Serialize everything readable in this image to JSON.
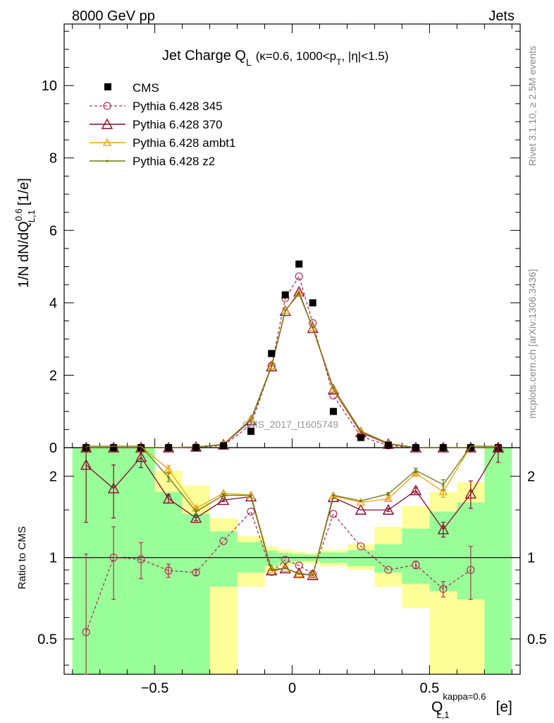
{
  "header": {
    "left": "8000 GeV pp",
    "right": "Jets"
  },
  "side_labels": {
    "rivet": "Rivet 3.1.10, ≥ 2.5M events",
    "mcplots": "mcplots.cern.ch [arXiv:1306.3436]"
  },
  "watermark": "CMS_2017_I1605749",
  "title": {
    "main": "Jet Charge Q",
    "main_sub": "L",
    "detail": "(κ=0.6, 1000<p",
    "detail_sub": "T",
    "detail_tail": ", |η|<1.5)"
  },
  "axes": {
    "ylabel_main": "1/N dN/dQ",
    "ylabel_main_sup": "0.6",
    "ylabel_main_sub": "L,1",
    "ylabel_main_unit": "[1/e]",
    "ylabel_ratio": "Ratio to CMS",
    "xlabel": "Q",
    "xlabel_sup": "kappa=0.6",
    "xlabel_sub": "L,1",
    "xlabel_unit": "[e]",
    "x_ticks": [
      "−0.5",
      "0",
      "0.5"
    ],
    "y_ticks_main": [
      "0",
      "2",
      "4",
      "6",
      "8",
      "10"
    ],
    "y_ticks_ratio": [
      "0.5",
      "1",
      "2"
    ]
  },
  "colors": {
    "cms": "#000000",
    "p345": "#b03050",
    "p370": "#8b0a2a",
    "ambt1": "#f0a010",
    "z2": "#6b7a10",
    "band_green": "#99ff99",
    "band_yellow": "#ffff99"
  },
  "chart_data": {
    "type": "line",
    "x_range": [
      -0.83,
      0.83
    ],
    "main": {
      "ylim": [
        0,
        11.7
      ],
      "yscale": "linear"
    },
    "ratio": {
      "ylim": [
        0.37,
        2.55
      ],
      "yscale": "log",
      "reference": 1
    },
    "x": [
      -0.75,
      -0.65,
      -0.55,
      -0.45,
      -0.35,
      -0.25,
      -0.15,
      -0.075,
      -0.025,
      0.025,
      0.075,
      0.15,
      0.25,
      0.35,
      0.45,
      0.55,
      0.65,
      0.75
    ],
    "series": [
      {
        "name": "CMS",
        "style": "marker",
        "values": [
          0.0,
          0.0,
          0.0,
          0.0,
          0.0,
          0.05,
          0.45,
          2.6,
          4.22,
          5.07,
          4.0,
          1.0,
          0.28,
          0.07,
          0.0,
          0.0,
          0.0,
          0.0
        ]
      },
      {
        "name": "Pythia 6.428 345",
        "style": "dashed-circle",
        "values": [
          0.0,
          0.0,
          0.0,
          0.0,
          0.01,
          0.06,
          0.63,
          2.26,
          4.13,
          4.73,
          3.44,
          1.44,
          0.31,
          0.06,
          0.0,
          0.0,
          0.0,
          0.0
        ],
        "ratio": [
          0.53,
          1.0,
          0.985,
          0.895,
          0.88,
          1.15,
          1.48,
          0.885,
          0.98,
          0.935,
          0.87,
          1.45,
          1.1,
          0.9,
          0.94,
          0.765,
          0.9,
          null
        ],
        "ratio_err": [
          0.5,
          0.3,
          0.15,
          0.05,
          0.02,
          0.01,
          0.01,
          0.005,
          0.005,
          0.005,
          0.005,
          0.01,
          0.01,
          0.01,
          0.03,
          0.05,
          0.2,
          null
        ]
      },
      {
        "name": "Pythia 6.428 370",
        "style": "solid-triangle",
        "values": [
          0.0,
          0.0,
          0.0,
          0.0,
          0.02,
          0.08,
          0.75,
          2.24,
          3.77,
          4.3,
          3.3,
          1.6,
          0.42,
          0.1,
          0.0,
          0.0,
          0.0,
          0.0
        ],
        "ratio": [
          2.2,
          1.8,
          2.35,
          1.65,
          1.4,
          1.63,
          1.68,
          0.895,
          0.91,
          0.875,
          0.86,
          1.67,
          1.5,
          1.5,
          1.77,
          1.27,
          1.72,
          2.55
        ],
        "ratio_err": [
          0.85,
          0.4,
          0.2,
          0.06,
          0.03,
          0.02,
          0.01,
          0.005,
          0.005,
          0.005,
          0.005,
          0.01,
          0.01,
          0.02,
          0.04,
          0.08,
          0.2,
          0.3
        ]
      },
      {
        "name": "Pythia 6.428 ambt1",
        "style": "solid-hollow-triangle",
        "values": [
          0.0,
          0.0,
          0.0,
          0.0,
          0.02,
          0.09,
          0.78,
          2.25,
          3.79,
          4.26,
          3.31,
          1.62,
          0.45,
          0.11,
          0.0,
          0.0,
          0.0,
          0.0
        ],
        "ratio": [
          3.5,
          3.0,
          3.0,
          2.12,
          1.52,
          1.73,
          1.7,
          0.9,
          0.91,
          0.87,
          0.86,
          1.69,
          1.6,
          1.65,
          2.05,
          1.75,
          3.0,
          3.5
        ],
        "ratio_err": [
          1.0,
          0.5,
          0.3,
          0.07,
          0.03,
          0.02,
          0.01,
          0.005,
          0.005,
          0.005,
          0.005,
          0.01,
          0.01,
          0.02,
          0.04,
          0.08,
          0.3,
          0.3
        ]
      },
      {
        "name": "Pythia 6.428 z2",
        "style": "solid-dot",
        "values": [
          0.0,
          0.0,
          0.0,
          0.0,
          0.02,
          0.09,
          0.78,
          2.26,
          3.79,
          4.25,
          3.32,
          1.65,
          0.46,
          0.12,
          0.0,
          0.0,
          0.0,
          0.0
        ],
        "ratio": [
          3.5,
          3.0,
          3.0,
          1.98,
          1.48,
          1.7,
          1.7,
          0.9,
          0.915,
          0.87,
          0.86,
          1.7,
          1.62,
          1.72,
          2.1,
          1.86,
          3.0,
          3.5
        ],
        "ratio_err": [
          1.0,
          0.5,
          0.3,
          0.07,
          0.03,
          0.02,
          0.01,
          0.005,
          0.005,
          0.005,
          0.005,
          0.01,
          0.01,
          0.02,
          0.04,
          0.08,
          0.3,
          0.3
        ]
      }
    ],
    "uncertainty_bands": {
      "bin_edges": [
        -0.8,
        -0.7,
        -0.6,
        -0.5,
        -0.4,
        -0.3,
        -0.2,
        -0.1,
        -0.05,
        0.0,
        0.05,
        0.1,
        0.2,
        0.3,
        0.4,
        0.5,
        0.6,
        0.7,
        0.8
      ],
      "green": [
        [
          0.37,
          2.55
        ],
        [
          0.37,
          2.55
        ],
        [
          0.37,
          2.55
        ],
        [
          0.37,
          1.75
        ],
        [
          0.37,
          1.45
        ],
        [
          0.78,
          1.25
        ],
        [
          0.88,
          1.14
        ],
        [
          0.93,
          1.06
        ],
        [
          0.955,
          1.04
        ],
        [
          0.97,
          1.03
        ],
        [
          0.97,
          1.025
        ],
        [
          0.955,
          1.045
        ],
        [
          0.93,
          1.065
        ],
        [
          0.88,
          1.12
        ],
        [
          0.8,
          1.28
        ],
        [
          0.75,
          1.48
        ],
        [
          0.7,
          1.6
        ],
        [
          0.37,
          2.55
        ]
      ],
      "yellow": [
        [
          0.37,
          2.55
        ],
        [
          0.37,
          2.55
        ],
        [
          0.37,
          2.55
        ],
        [
          0.37,
          2.1
        ],
        [
          0.37,
          1.85
        ],
        [
          0.37,
          1.4
        ],
        [
          0.78,
          1.2
        ],
        [
          0.88,
          1.1
        ],
        [
          0.93,
          1.07
        ],
        [
          0.95,
          1.05
        ],
        [
          0.95,
          1.04
        ],
        [
          0.93,
          1.07
        ],
        [
          0.9,
          1.12
        ],
        [
          0.78,
          1.3
        ],
        [
          0.65,
          1.55
        ],
        [
          0.37,
          1.75
        ],
        [
          0.37,
          1.9
        ],
        [
          0.37,
          2.55
        ]
      ]
    }
  }
}
